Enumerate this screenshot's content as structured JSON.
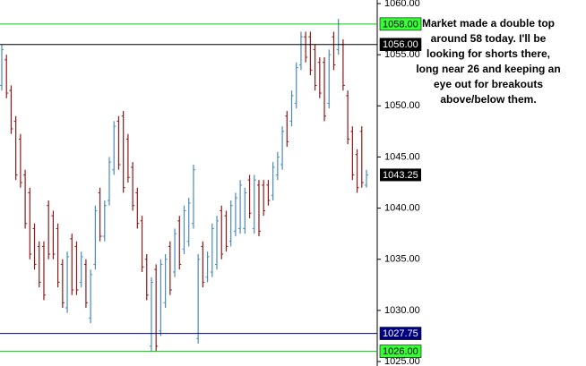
{
  "chart_data": {
    "type": "ohlc",
    "ylim": [
      1025,
      1060
    ],
    "yticks": [
      {
        "value": 1060,
        "label": "1060.00"
      },
      {
        "value": 1055,
        "label": "1055.00"
      },
      {
        "value": 1050,
        "label": "1050.00"
      },
      {
        "value": 1045,
        "label": "1045.00"
      },
      {
        "value": 1040,
        "label": "1040.00"
      },
      {
        "value": 1035,
        "label": "1035.00"
      },
      {
        "value": 1030,
        "label": "1030.00"
      },
      {
        "value": 1025,
        "label": "1025.00"
      }
    ],
    "up_color": "#4a8ab8",
    "down_color": "#8b1a1a",
    "bars": [
      [
        1052,
        1056,
        1051.5,
        1055.5
      ],
      [
        1054.5,
        1055,
        1050.75,
        1051.25
      ],
      [
        1051.5,
        1052,
        1047.25,
        1047.75
      ],
      [
        1048.5,
        1049,
        1042.75,
        1043.25
      ],
      [
        1046.75,
        1047.25,
        1042,
        1042.5
      ],
      [
        1043.25,
        1043.75,
        1038,
        1038.5
      ],
      [
        1041.5,
        1042,
        1035,
        1035.5
      ],
      [
        1038,
        1038.5,
        1034,
        1034.5
      ],
      [
        1036.25,
        1036.75,
        1032.25,
        1032.75
      ],
      [
        1036.25,
        1036.75,
        1031,
        1031.5
      ],
      [
        1040.25,
        1040.75,
        1035,
        1035.5
      ],
      [
        1039.25,
        1039.75,
        1035,
        1035.5
      ],
      [
        1038,
        1038.5,
        1032.25,
        1032.75
      ],
      [
        1034.5,
        1035,
        1030.25,
        1030.75
      ],
      [
        1030.25,
        1035.75,
        1029.75,
        1035.25
      ],
      [
        1037,
        1037.5,
        1031.5,
        1032
      ],
      [
        1036.25,
        1036.75,
        1031.5,
        1032
      ],
      [
        1032.75,
        1035.75,
        1032.25,
        1035.25
      ],
      [
        1034.5,
        1035,
        1030.25,
        1030.75
      ],
      [
        1029.25,
        1034,
        1028.75,
        1033.5
      ],
      [
        1034.5,
        1040.25,
        1034,
        1039.75
      ],
      [
        1041.5,
        1042,
        1036.75,
        1037.25
      ],
      [
        1037.25,
        1040.75,
        1036.75,
        1040.25
      ],
      [
        1040.75,
        1045,
        1040.25,
        1044.5
      ],
      [
        1043.75,
        1048.5,
        1043.25,
        1048
      ],
      [
        1048.5,
        1049,
        1043.75,
        1044.25
      ],
      [
        1049,
        1049.5,
        1041.5,
        1042
      ],
      [
        1046.75,
        1047.25,
        1042.5,
        1043
      ],
      [
        1044,
        1044.5,
        1039.75,
        1040.25
      ],
      [
        1041.5,
        1042,
        1038,
        1038.5
      ],
      [
        1038.75,
        1039.25,
        1033.75,
        1034.25
      ],
      [
        1035,
        1035.5,
        1031,
        1031.5
      ],
      [
        1026.5,
        1033.25,
        1026,
        1032.75
      ],
      [
        1034,
        1034.5,
        1026,
        1026.5
      ],
      [
        1028,
        1035,
        1027.5,
        1034.5
      ],
      [
        1030.75,
        1035.5,
        1030.25,
        1035
      ],
      [
        1036.25,
        1036.75,
        1031.5,
        1032
      ],
      [
        1033.75,
        1038,
        1033.25,
        1037.5
      ],
      [
        1038.75,
        1039.25,
        1034,
        1034.5
      ],
      [
        1036,
        1040.25,
        1035.5,
        1039.75
      ],
      [
        1036.75,
        1041,
        1036.25,
        1040.5
      ],
      [
        1038.5,
        1044.25,
        1038,
        1043.75
      ],
      [
        1027.25,
        1035.5,
        1026.75,
        1035
      ],
      [
        1036.25,
        1036.75,
        1032.25,
        1032.75
      ],
      [
        1033.25,
        1035.75,
        1032.75,
        1035.25
      ],
      [
        1033.75,
        1038.5,
        1033.25,
        1038
      ],
      [
        1034.5,
        1039.25,
        1034,
        1038.75
      ],
      [
        1039.75,
        1040.25,
        1035,
        1035.5
      ],
      [
        1039.25,
        1039.75,
        1035.75,
        1036.25
      ],
      [
        1036.75,
        1040.75,
        1036.25,
        1040.25
      ],
      [
        1037.75,
        1041.5,
        1037.25,
        1041
      ],
      [
        1038,
        1042.75,
        1037.5,
        1042.25
      ],
      [
        1038,
        1042,
        1037.5,
        1041.5
      ],
      [
        1042.75,
        1043.25,
        1039,
        1039.5
      ],
      [
        1038,
        1043.25,
        1037.5,
        1042.75
      ],
      [
        1042.25,
        1042.75,
        1037.25,
        1037.75
      ],
      [
        1042.25,
        1042.75,
        1039.25,
        1039.75
      ],
      [
        1042.25,
        1042.75,
        1040.25,
        1040.75
      ],
      [
        1041.25,
        1044.5,
        1040.75,
        1044
      ],
      [
        1043.25,
        1045.5,
        1042.75,
        1045
      ],
      [
        1044.25,
        1048,
        1043.75,
        1047.5
      ],
      [
        1049,
        1049.5,
        1046,
        1046.5
      ],
      [
        1048.5,
        1051.5,
        1048,
        1051
      ],
      [
        1050.25,
        1054.25,
        1049.75,
        1053.75
      ],
      [
        1054,
        1057.25,
        1053.5,
        1056.75
      ],
      [
        1056.75,
        1057.25,
        1054.25,
        1054.75
      ],
      [
        1056.75,
        1057.25,
        1053,
        1053.5
      ],
      [
        1055.5,
        1056,
        1051.5,
        1052
      ],
      [
        1054.25,
        1054.75,
        1050.75,
        1051.25
      ],
      [
        1054.25,
        1054.75,
        1048.5,
        1049
      ],
      [
        1050.25,
        1055.5,
        1049.75,
        1055
      ],
      [
        1056.75,
        1057.25,
        1053.5,
        1054
      ],
      [
        1055.5,
        1058.5,
        1055,
        1058
      ],
      [
        1056,
        1056.5,
        1051.5,
        1052
      ],
      [
        1051,
        1051.5,
        1046.25,
        1046.75
      ],
      [
        1047.5,
        1048,
        1042.75,
        1043.25
      ],
      [
        1045.25,
        1045.75,
        1041.5,
        1042
      ],
      [
        1047.5,
        1048,
        1042,
        1042.5
      ],
      [
        1042.25,
        1043.75,
        1042,
        1043.25
      ]
    ],
    "levels": [
      {
        "value": 1058,
        "label": "1058.00",
        "color": "#00cc00",
        "label_fill": "#33ff33",
        "text_color": "#000000"
      },
      {
        "value": 1056,
        "label": "1056.00",
        "color": "#000000",
        "label_fill": "#000000",
        "text_color": "#ffffff"
      },
      {
        "value": 1027.75,
        "label": "1027.75",
        "color": "#000080",
        "label_fill": "#000080",
        "text_color": "#ffffff"
      },
      {
        "value": 1026,
        "label": "1026.00",
        "color": "#00cc00",
        "label_fill": "#33ff33",
        "text_color": "#000000"
      }
    ],
    "annotation": [
      "Market made a double top",
      "around 58 today. I'll be",
      "looking for shorts there,",
      "long near 26 and keeping an",
      "eye out for breakouts",
      "above/below them."
    ]
  }
}
